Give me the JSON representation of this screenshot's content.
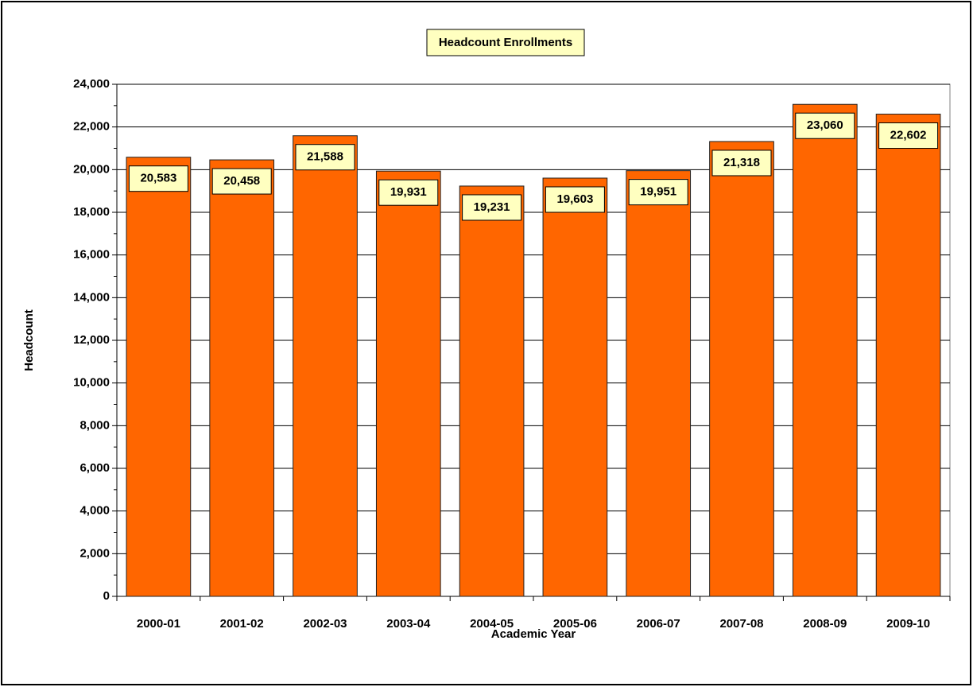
{
  "chart_data": {
    "type": "bar",
    "title": "Headcount Enrollments",
    "x_label": "Academic Year",
    "y_label": "Headcount",
    "categories": [
      "2000-01",
      "2001-02",
      "2002-03",
      "2003-04",
      "2004-05",
      "2005-06",
      "2006-07",
      "2007-08",
      "2008-09",
      "2009-10"
    ],
    "values": [
      20583,
      20458,
      21588,
      19931,
      19231,
      19603,
      19951,
      21318,
      23060,
      22602
    ],
    "value_labels": [
      "20,583",
      "20,458",
      "21,588",
      "19,931",
      "19,231",
      "19,603",
      "19,951",
      "21,318",
      "23,060",
      "22,602"
    ],
    "color": "#ff6600",
    "ylim": [
      0,
      24000
    ],
    "yticks": [
      0,
      {
        "value": 2000,
        "label": "2,000"
      },
      {
        "value": 4000,
        "label": "4,000"
      },
      {
        "value": 6000,
        "label": "6,000"
      },
      {
        "value": 8000,
        "label": "8,000"
      },
      {
        "value": 10000,
        "label": "10,000"
      },
      {
        "value": 12000,
        "label": "12,000"
      },
      {
        "value": 14000,
        "label": "14,000"
      },
      {
        "value": 16000,
        "label": "16,000"
      },
      {
        "value": 18000,
        "label": "18,000"
      },
      {
        "value": 20000,
        "label": "20,000"
      },
      {
        "value": 22000,
        "label": "22,000"
      },
      {
        "value": 24000,
        "label": "24,000"
      }
    ],
    "yminorticks": [
      1000,
      3000,
      5000,
      7000,
      9000,
      11000,
      13000,
      15000,
      17000,
      19000,
      21000,
      23000
    ],
    "grid": true
  }
}
